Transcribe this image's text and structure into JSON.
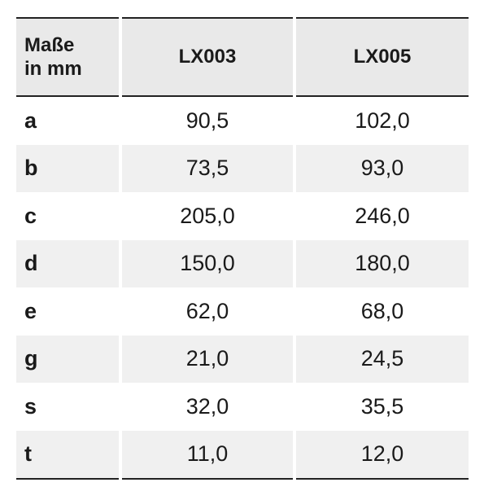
{
  "table": {
    "header": [
      [
        "Maße",
        "in mm"
      ],
      "LX003",
      "LX005"
    ],
    "rows": [
      [
        "a",
        "90,5",
        "102,0"
      ],
      [
        "b",
        "73,5",
        "93,0"
      ],
      [
        "c",
        "205,0",
        "246,0"
      ],
      [
        "d",
        "150,0",
        "180,0"
      ],
      [
        "e",
        "62,0",
        "68,0"
      ],
      [
        "g",
        "21,0",
        "24,5"
      ],
      [
        "s",
        "32,0",
        "35,5"
      ],
      [
        "t",
        "11,0",
        "12,0"
      ]
    ]
  }
}
